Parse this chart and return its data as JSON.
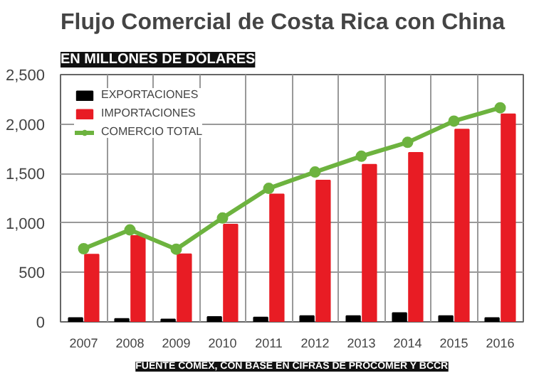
{
  "chart_data": {
    "type": "bar",
    "title": "Flujo Comercial de Costa Rica con China",
    "subtitle": "EN MILLONES DE DÓLARES",
    "annotations": [
      "FUENTE COMEX, CON BASE EN CIFRAS DE PROCOMER Y BCCR"
    ],
    "categories": [
      "2007",
      "2008",
      "2009",
      "2010",
      "2011",
      "2012",
      "2013",
      "2014",
      "2015",
      "2016"
    ],
    "series": [
      {
        "name": "EXPORTACIONES",
        "color": "#000000",
        "values": [
          40,
          30,
          25,
          50,
          45,
          60,
          60,
          90,
          60,
          40
        ]
      },
      {
        "name": "IMPORTACIONES",
        "color": "#e81c24",
        "values": [
          680,
          870,
          685,
          985,
          1290,
          1430,
          1590,
          1710,
          1945,
          2100
        ]
      },
      {
        "name": "COMERCIO TOTAL",
        "type": "line",
        "color": "#6db33f",
        "marker": "circle",
        "values": [
          740,
          930,
          735,
          1050,
          1350,
          1515,
          1675,
          1815,
          2030,
          2165
        ]
      }
    ],
    "ylim": [
      0,
      2500
    ],
    "yticks": [
      {
        "value": 0,
        "label": "0"
      },
      {
        "value": 500,
        "label": "500"
      },
      {
        "value": 1000,
        "label": "1,000"
      },
      {
        "value": 1500,
        "label": "1,500"
      },
      {
        "value": 2000,
        "label": "2,000"
      },
      {
        "value": 2500,
        "label": "2,500"
      }
    ],
    "grid": true,
    "legend": "top left"
  }
}
